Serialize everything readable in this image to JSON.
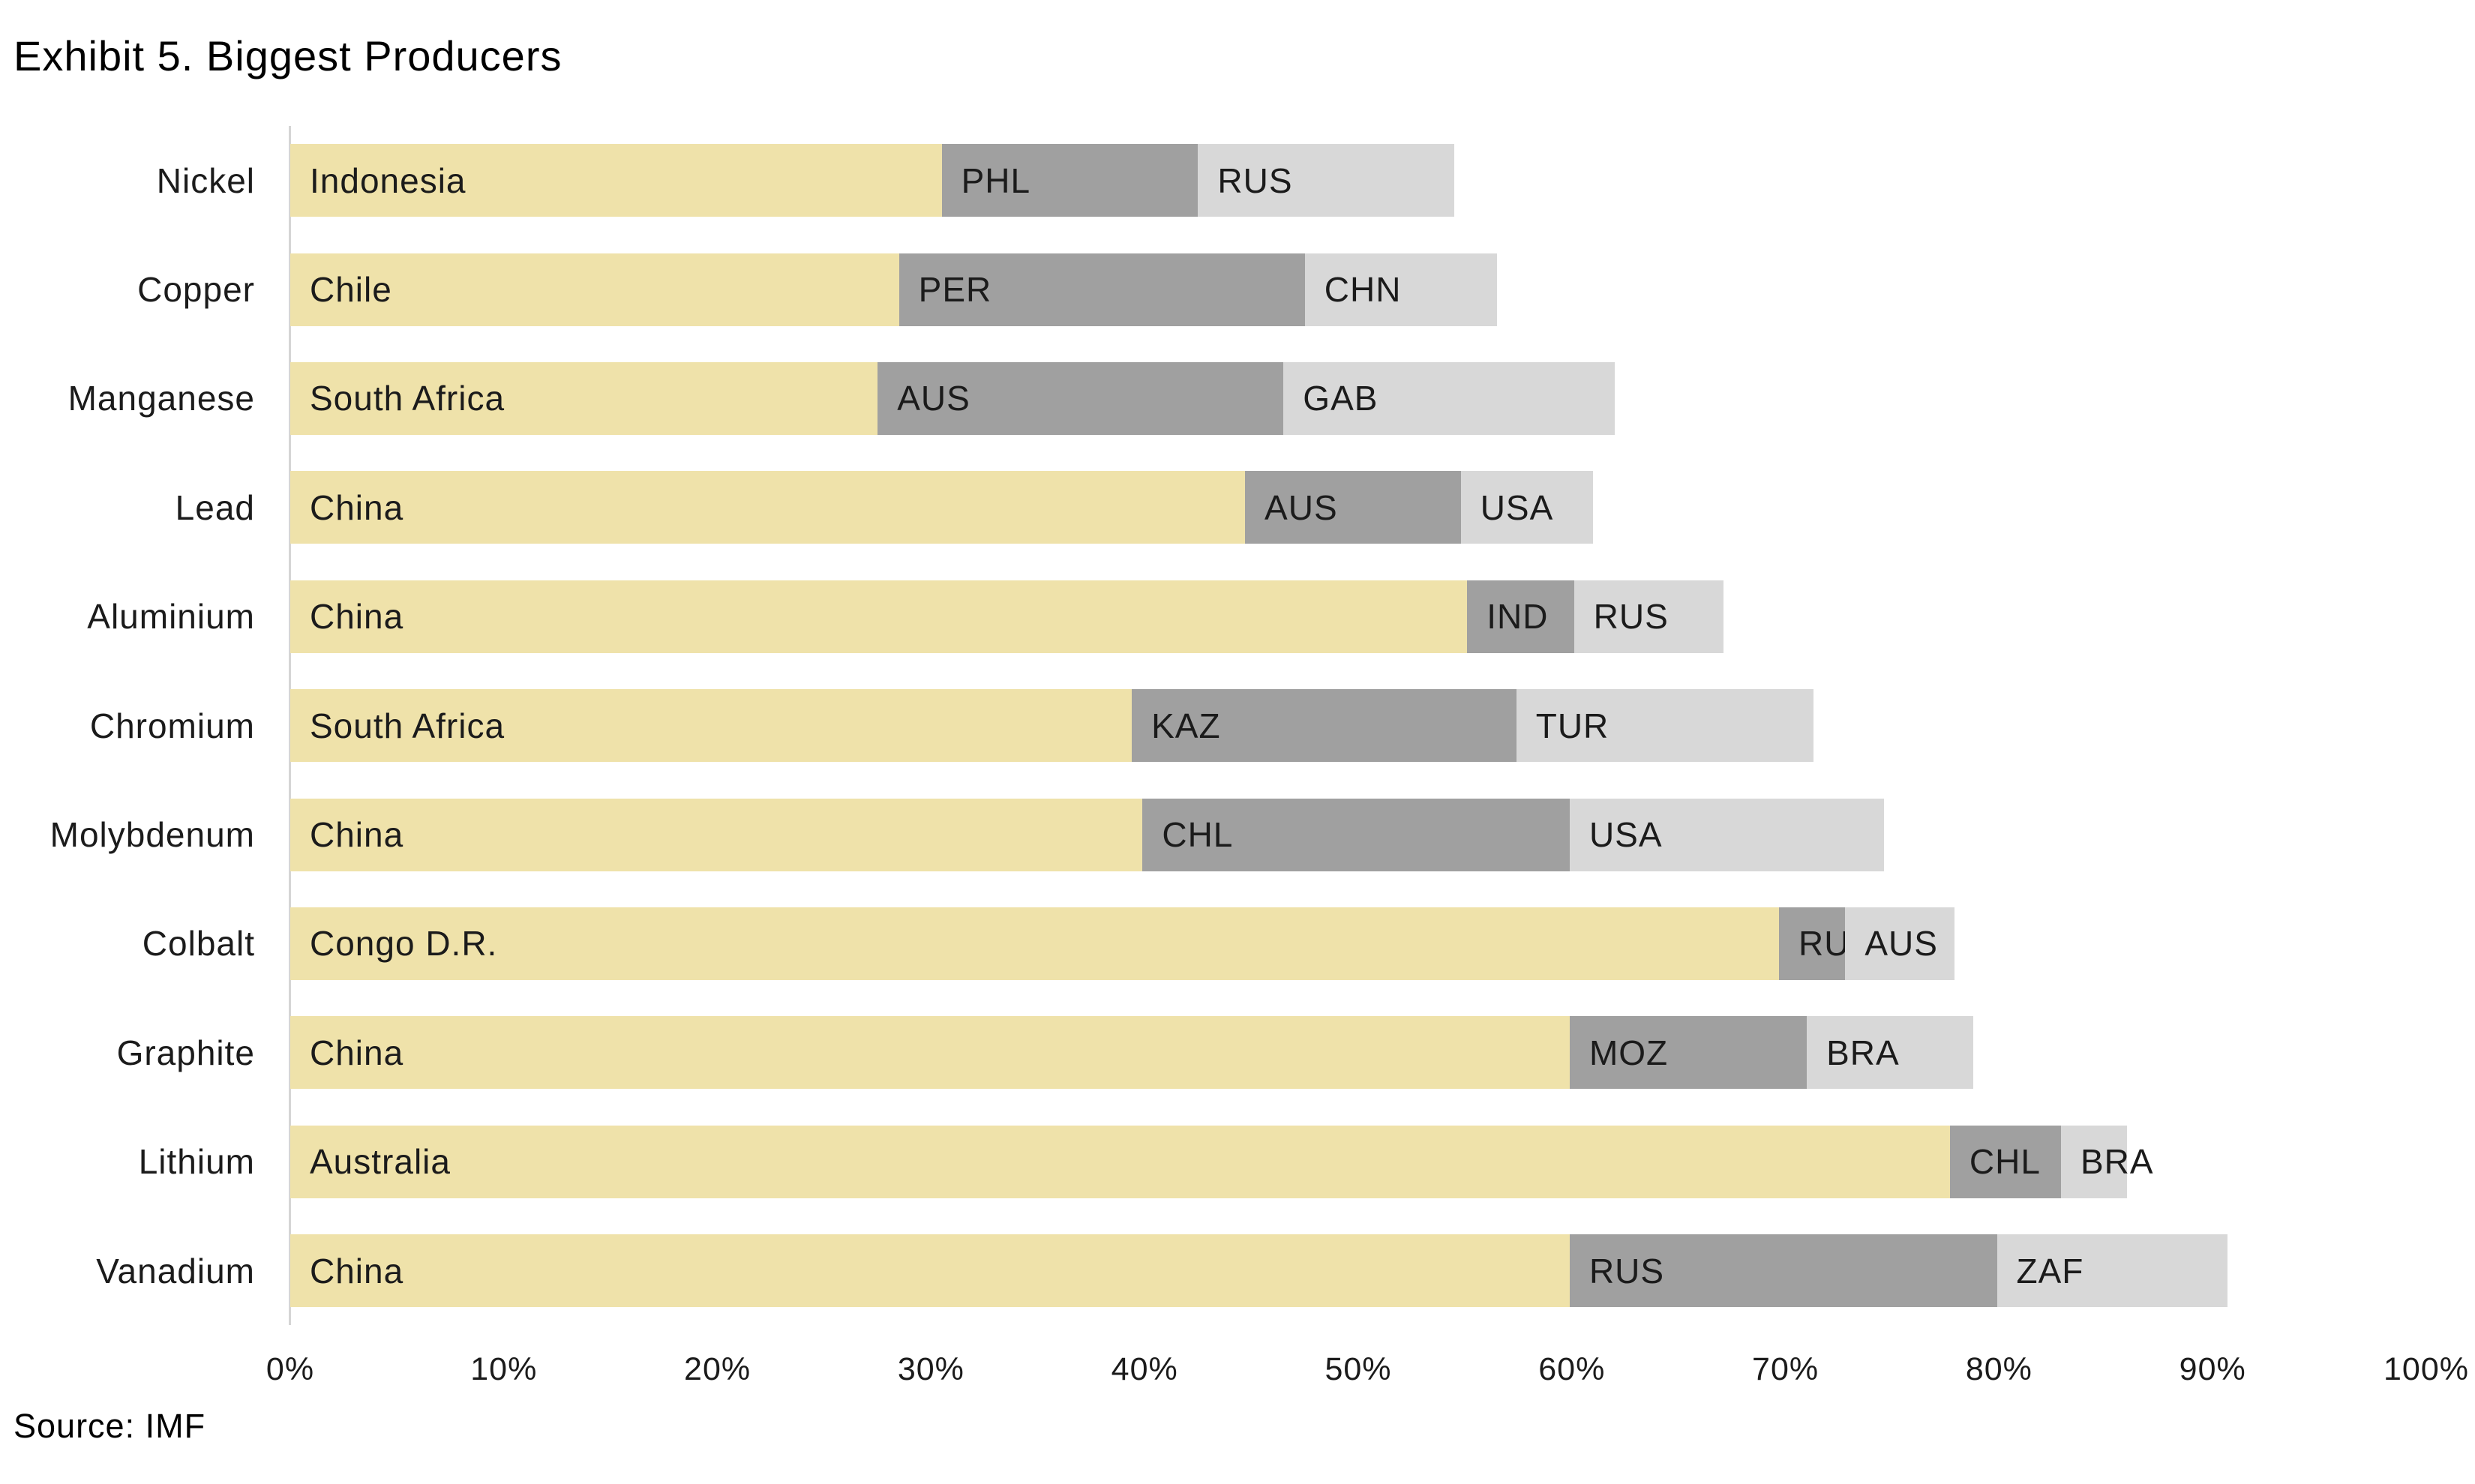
{
  "title": "Exhibit 5. Biggest Producers",
  "source_note": "Source: IMF",
  "colors": {
    "leader_fill": "#EFE2AA",
    "second_fill": "#A0A0A0",
    "third_fill": "#D8D8D8",
    "axis_line": "#D5D5D5",
    "label_text": "#1B1B1B"
  },
  "x_axis": {
    "tick_labels": [
      "0%",
      "10%",
      "20%",
      "30%",
      "40%",
      "50%",
      "60%",
      "70%",
      "80%",
      "90%",
      "100%"
    ],
    "min": 0,
    "max": 100
  },
  "chart_data": {
    "type": "bar",
    "orientation": "horizontal",
    "stacked": true,
    "title": "Exhibit 5. Biggest Producers",
    "xlabel": "",
    "ylabel": "",
    "xlim": [
      0,
      100
    ],
    "grid": false,
    "legend": false,
    "unit": "percent share of axis (0-100%)",
    "categories": [
      "Nickel",
      "Copper",
      "Manganese",
      "Lead",
      "Aluminium",
      "Chromium",
      "Molybdenum",
      "Colbalt",
      "Graphite",
      "Lithium",
      "Vanadium"
    ],
    "rows": [
      {
        "category": "Nickel",
        "segments": [
          {
            "label": "Indonesia",
            "value": 30.5
          },
          {
            "label": "PHL",
            "value": 12
          },
          {
            "label": "RUS",
            "value": 12
          }
        ]
      },
      {
        "category": "Copper",
        "segments": [
          {
            "label": "Chile",
            "value": 28.5
          },
          {
            "label": "PER",
            "value": 19
          },
          {
            "label": "CHN",
            "value": 9
          }
        ]
      },
      {
        "category": "Manganese",
        "segments": [
          {
            "label": "South Africa",
            "value": 27.5
          },
          {
            "label": "AUS",
            "value": 19
          },
          {
            "label": "GAB",
            "value": 15.5
          }
        ]
      },
      {
        "category": "Lead",
        "segments": [
          {
            "label": "China",
            "value": 44.7
          },
          {
            "label": "AUS",
            "value": 10.1
          },
          {
            "label": "USA",
            "value": 6.2
          }
        ]
      },
      {
        "category": "Aluminium",
        "segments": [
          {
            "label": "China",
            "value": 55.1
          },
          {
            "label": "IND",
            "value": 5
          },
          {
            "label": "RUS",
            "value": 7
          }
        ]
      },
      {
        "category": "Chromium",
        "segments": [
          {
            "label": "South Africa",
            "value": 39.4
          },
          {
            "label": "KAZ",
            "value": 18
          },
          {
            "label": "TUR",
            "value": 13.9
          }
        ]
      },
      {
        "category": "Molybdenum",
        "segments": [
          {
            "label": "China",
            "value": 39.9
          },
          {
            "label": "CHL",
            "value": 20
          },
          {
            "label": "USA",
            "value": 14.7
          }
        ]
      },
      {
        "category": "Colbalt",
        "segments": [
          {
            "label": "Congo D.R.",
            "value": 69.7
          },
          {
            "label": "RUS",
            "value": 3.1
          },
          {
            "label": "AUS",
            "value": 5.1
          }
        ]
      },
      {
        "category": "Graphite",
        "segments": [
          {
            "label": "China",
            "value": 59.9
          },
          {
            "label": "MOZ",
            "value": 11.1
          },
          {
            "label": "BRA",
            "value": 7.8
          }
        ]
      },
      {
        "category": "Lithium",
        "segments": [
          {
            "label": "Australia",
            "value": 77.7
          },
          {
            "label": "CHL",
            "value": 5.2
          },
          {
            "label": "BRA",
            "value": 3.1
          }
        ]
      },
      {
        "category": "Vanadium",
        "segments": [
          {
            "label": "China",
            "value": 59.9
          },
          {
            "label": "RUS",
            "value": 20
          },
          {
            "label": "ZAF",
            "value": 10.8
          }
        ]
      }
    ]
  }
}
